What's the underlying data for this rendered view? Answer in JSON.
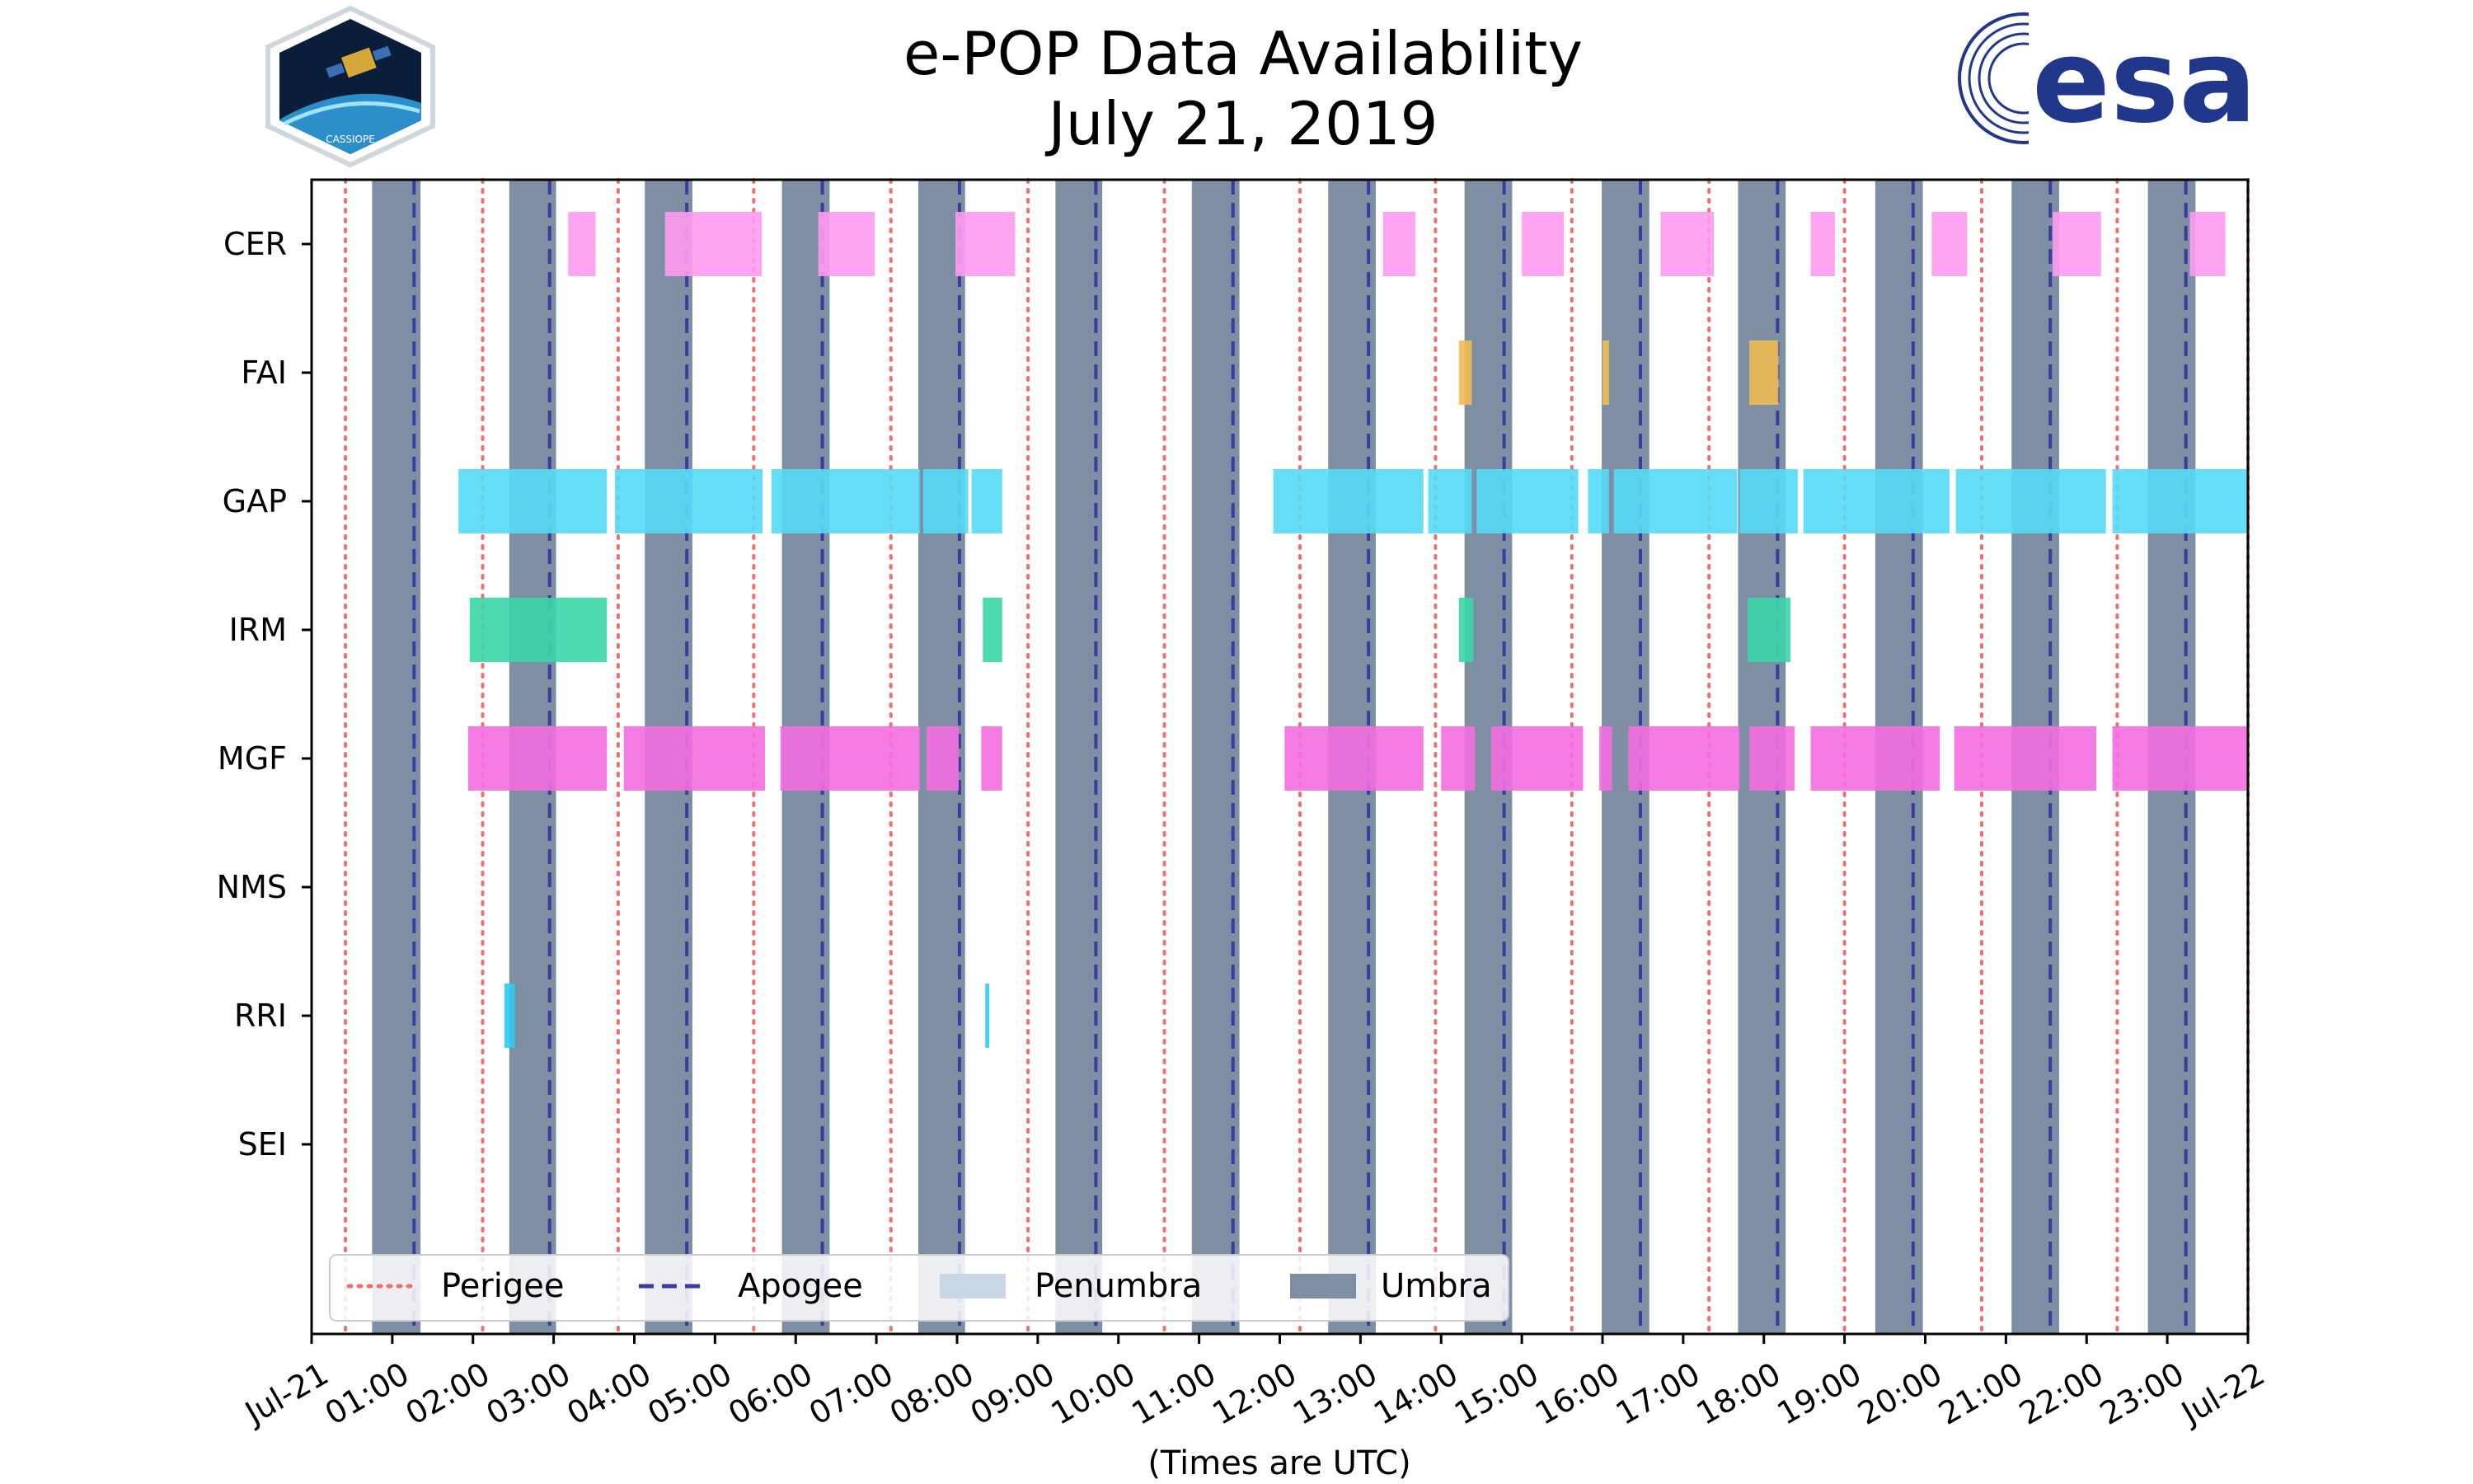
{
  "chart_data": {
    "type": "timeline",
    "title": [
      "e-POP Data Availability",
      "July 21, 2019"
    ],
    "xlabel": "(Times are UTC)",
    "xlim": [
      0,
      24
    ],
    "x_tick_labels": [
      "Jul-21",
      "01:00",
      "02:00",
      "03:00",
      "04:00",
      "05:00",
      "06:00",
      "07:00",
      "08:00",
      "09:00",
      "10:00",
      "11:00",
      "12:00",
      "13:00",
      "14:00",
      "15:00",
      "16:00",
      "17:00",
      "18:00",
      "19:00",
      "20:00",
      "21:00",
      "22:00",
      "23:00",
      "Jul-22"
    ],
    "categories": [
      "CER",
      "FAI",
      "GAP",
      "IRM",
      "MGF",
      "NMS",
      "RRI",
      "SEI"
    ],
    "perigee_hours": [
      0.42,
      2.12,
      3.8,
      5.48,
      7.18,
      8.88,
      10.57,
      12.25,
      13.93,
      15.62,
      17.32,
      19.0,
      20.7,
      22.38,
      24.0
    ],
    "apogee_hours": [
      1.27,
      2.95,
      4.65,
      6.33,
      8.03,
      9.72,
      11.42,
      13.1,
      14.78,
      16.47,
      18.17,
      19.85,
      21.55,
      23.23
    ],
    "umbra_intervals": [
      [
        0.75,
        1.35
      ],
      [
        2.45,
        3.03
      ],
      [
        4.13,
        4.72
      ],
      [
        5.83,
        6.42
      ],
      [
        7.52,
        8.1
      ],
      [
        9.22,
        9.8
      ],
      [
        10.91,
        11.5
      ],
      [
        12.6,
        13.19
      ],
      [
        14.29,
        14.88
      ],
      [
        15.99,
        16.58
      ],
      [
        17.68,
        18.27
      ],
      [
        19.38,
        19.97
      ],
      [
        21.07,
        21.66
      ],
      [
        22.76,
        23.35
      ]
    ],
    "series": [
      {
        "name": "CER",
        "color": "#ff9af0",
        "intervals": [
          [
            3.18,
            3.52
          ],
          [
            4.38,
            5.58
          ],
          [
            6.28,
            6.98
          ],
          [
            7.98,
            8.72
          ],
          [
            13.28,
            13.68
          ],
          [
            15.0,
            15.52
          ],
          [
            16.72,
            17.38
          ],
          [
            18.58,
            18.88
          ],
          [
            20.08,
            20.52
          ],
          [
            21.58,
            22.18
          ],
          [
            23.28,
            23.72
          ]
        ]
      },
      {
        "name": "FAI",
        "color": "#f0bb55",
        "intervals": [
          [
            14.22,
            14.38
          ],
          [
            16.0,
            16.08
          ],
          [
            17.82,
            18.18
          ]
        ]
      },
      {
        "name": "GAP",
        "color": "#57daf7",
        "intervals": [
          [
            1.82,
            3.66
          ],
          [
            3.76,
            5.59
          ],
          [
            5.7,
            7.54
          ],
          [
            7.58,
            8.14
          ],
          [
            8.18,
            8.56
          ],
          [
            11.92,
            13.78
          ],
          [
            13.84,
            14.38
          ],
          [
            14.44,
            15.7
          ],
          [
            15.82,
            16.08
          ],
          [
            16.14,
            17.67
          ],
          [
            17.7,
            18.42
          ],
          [
            18.49,
            20.3
          ],
          [
            20.38,
            22.24
          ],
          [
            22.32,
            24.0
          ]
        ]
      },
      {
        "name": "IRM",
        "color": "#3ad6a9",
        "intervals": [
          [
            1.96,
            3.66
          ],
          [
            8.32,
            8.56
          ],
          [
            14.22,
            14.4
          ],
          [
            17.8,
            18.33
          ]
        ]
      },
      {
        "name": "MGF",
        "color": "#f36ee0",
        "intervals": [
          [
            1.94,
            3.66
          ],
          [
            3.87,
            5.62
          ],
          [
            5.81,
            7.54
          ],
          [
            7.62,
            8.02
          ],
          [
            8.3,
            8.56
          ],
          [
            12.06,
            13.78
          ],
          [
            14.0,
            14.42
          ],
          [
            14.62,
            15.76
          ],
          [
            15.96,
            16.12
          ],
          [
            16.32,
            17.7
          ],
          [
            17.82,
            18.38
          ],
          [
            18.58,
            20.18
          ],
          [
            20.36,
            22.12
          ],
          [
            22.32,
            24.0
          ]
        ]
      },
      {
        "name": "NMS",
        "color": "#57daf7",
        "intervals": []
      },
      {
        "name": "RRI",
        "color": "#2fcaf0",
        "intervals": [
          [
            2.39,
            2.52
          ],
          [
            8.35,
            8.4
          ]
        ]
      },
      {
        "name": "SEI",
        "color": "#57daf7",
        "intervals": []
      }
    ],
    "legend": {
      "position": "bottom-left",
      "items": [
        {
          "label": "Perigee",
          "style": "dotted",
          "color": "#f07070"
        },
        {
          "label": "Apogee",
          "style": "dashed",
          "color": "#3a3c9e"
        },
        {
          "label": "Penumbra",
          "style": "patch",
          "color": "#c9d6e6"
        },
        {
          "label": "Umbra",
          "style": "patch",
          "color": "#7e8fa3"
        }
      ]
    },
    "colors": {
      "umbra": "#7e8fa3",
      "penumbra": "#c9d6e6",
      "perigee": "#f07070",
      "apogee": "#3a3c9e"
    }
  },
  "logos": {
    "left": "cassiope-mission-logo",
    "left_text": "CASSIOPE",
    "right": "esa-logo",
    "right_text": "esa"
  }
}
